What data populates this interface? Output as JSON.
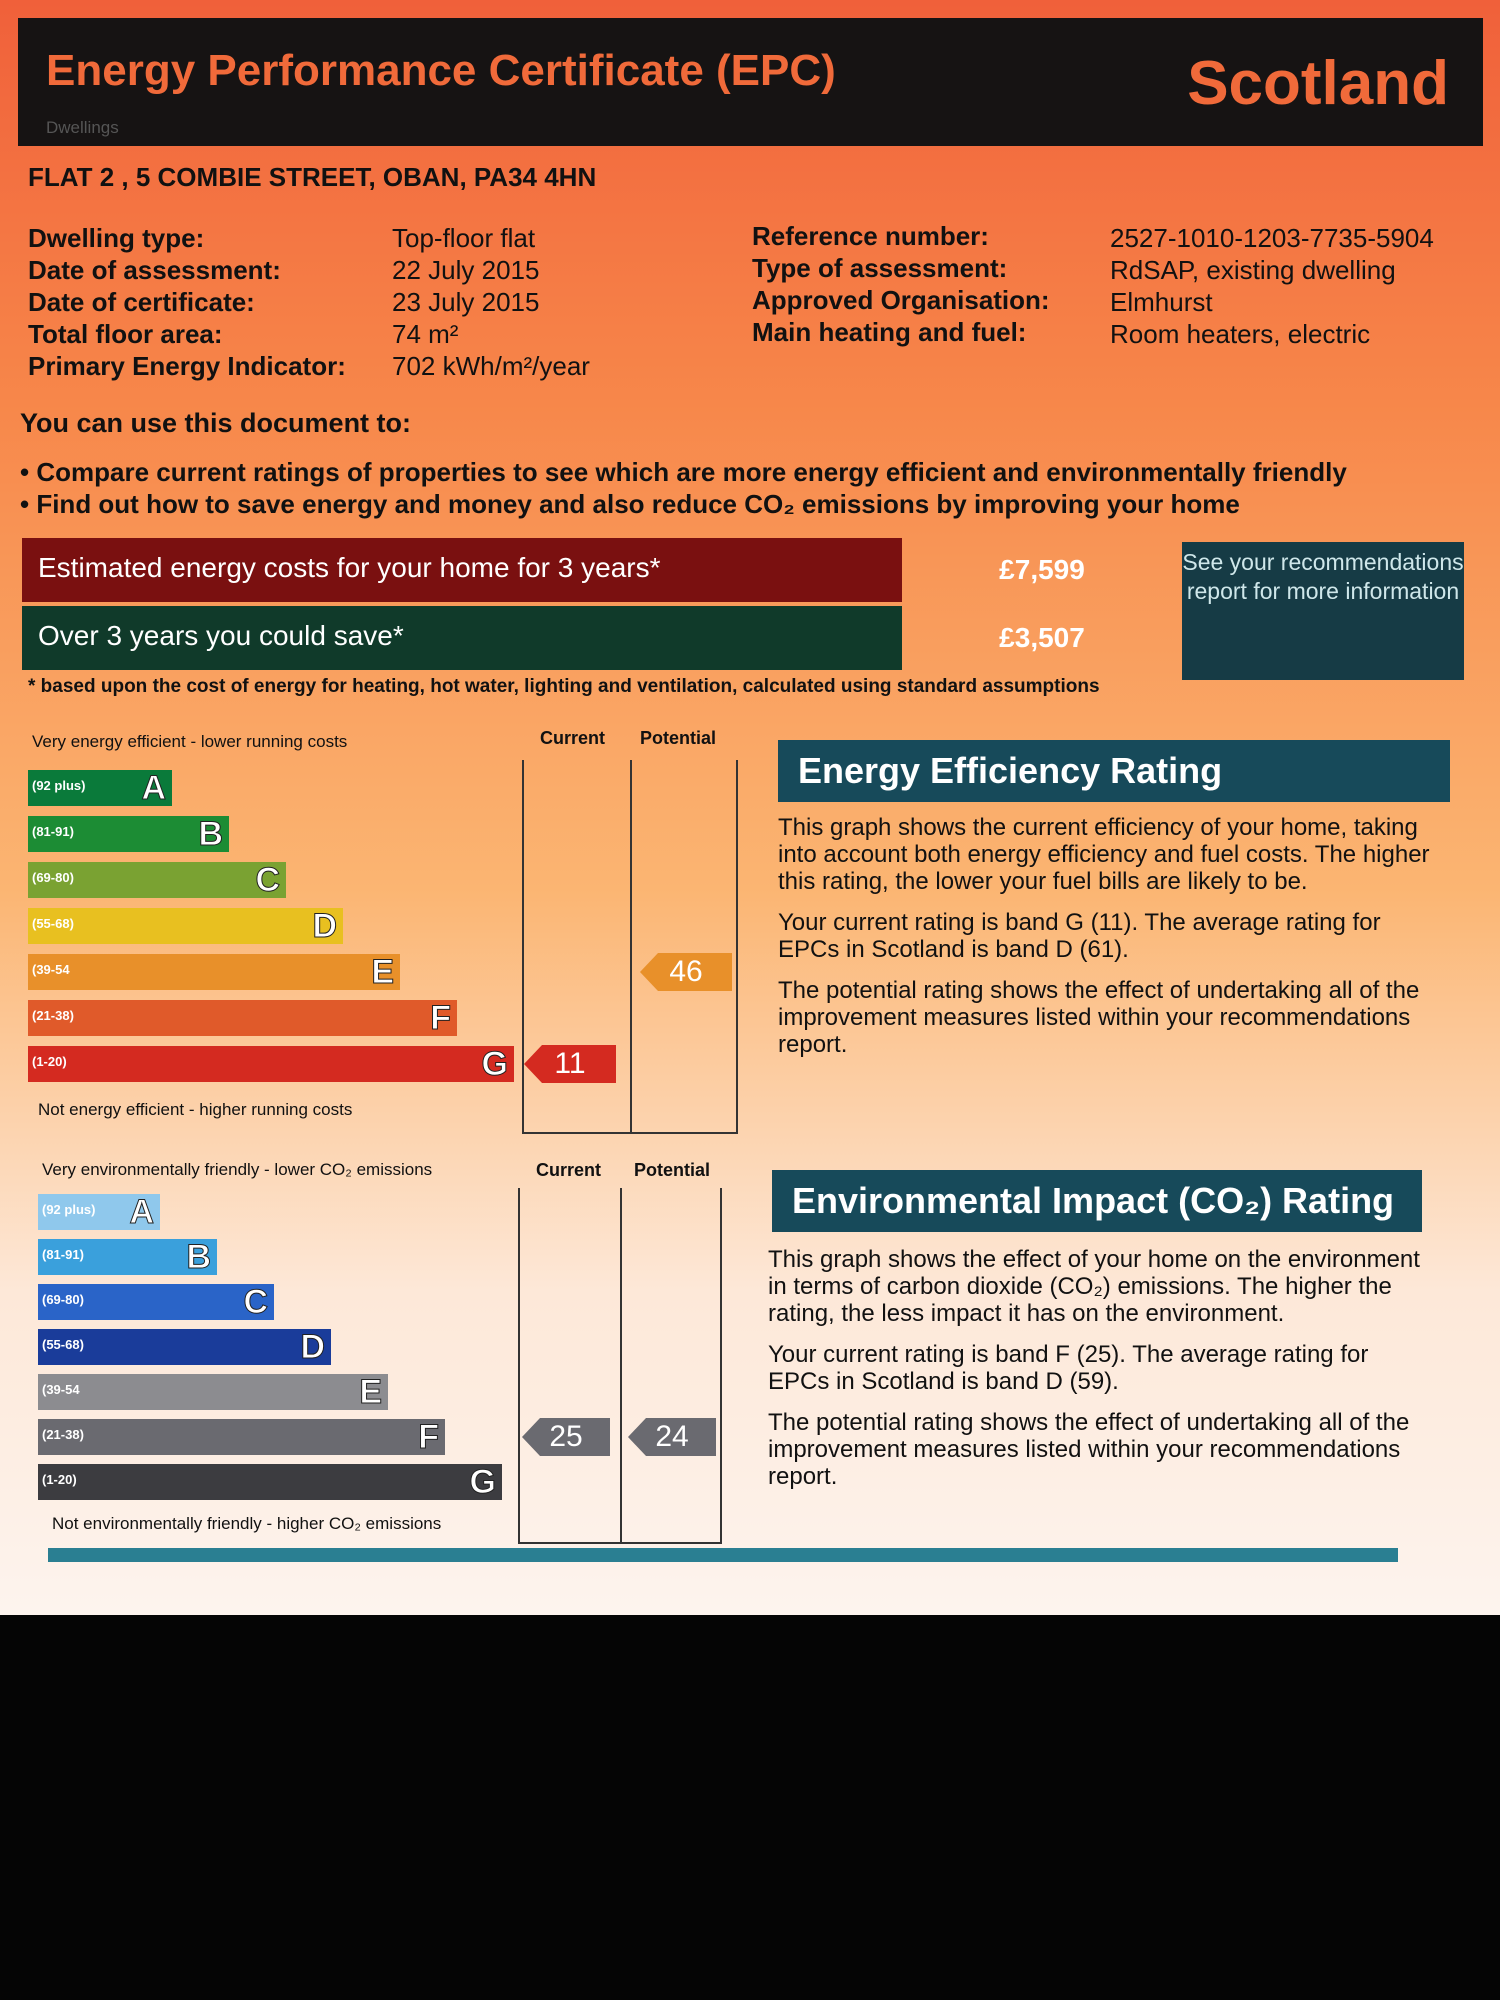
{
  "header": {
    "title": "Energy Performance Certificate (EPC)",
    "country": "Scotland",
    "subtitle": "Dwellings"
  },
  "address": "FLAT 2 , 5 COMBIE STREET, OBAN, PA34 4HN",
  "details_left": [
    {
      "label": "Dwelling type:",
      "value": "Top-floor flat"
    },
    {
      "label": "Date of assessment:",
      "value": "22 July 2015"
    },
    {
      "label": "Date of certificate:",
      "value": "23 July 2015"
    },
    {
      "label": "Total floor area:",
      "value": "74 m²"
    },
    {
      "label": "Primary Energy Indicator:",
      "value": "702 kWh/m²/year"
    }
  ],
  "details_right": [
    {
      "label": "Reference number:",
      "value": "2527-1010-1203-7735-5904"
    },
    {
      "label": "Type of assessment:",
      "value": "RdSAP, existing dwelling"
    },
    {
      "label": "Approved Organisation:",
      "value": "Elmhurst"
    },
    {
      "label": "Main heating and fuel:",
      "value": "Room heaters, electric"
    }
  ],
  "use_heading": "You can use this document to:",
  "bullets": [
    "Compare current ratings of properties to see which are more energy efficient and environmentally friendly",
    "Find out how to save energy and money and also reduce CO₂ emissions by improving your home"
  ],
  "costs": {
    "row1_label": "Estimated energy costs for your home for 3 years*",
    "row1_value": "£7,599",
    "row2_label": "Over 3 years you could save*",
    "row2_value": "£3,507",
    "see_box": "See your recommendations report for more information",
    "footnote": "* based upon the cost of energy for heating, hot water, lighting and ventilation, calculated using standard assumptions"
  },
  "colors": {
    "cost_row1": "#7a1010",
    "cost_row2": "#103a2a",
    "ee_bands": [
      "#0a7a3a",
      "#1c8c34",
      "#7aa232",
      "#e8c020",
      "#e8902a",
      "#e05a2a",
      "#d42a20"
    ],
    "ei_bands": [
      "#8fc8ec",
      "#3aa0dc",
      "#2a64c8",
      "#1a3c9a",
      "#8c8c90",
      "#6a6a70",
      "#3c3c40"
    ]
  },
  "energy_chart": {
    "top_label": "Very energy efficient - lower running costs",
    "bottom_label": "Not energy efficient - higher running costs",
    "col_current": "Current",
    "col_potential": "Potential",
    "bands": [
      {
        "letter": "A",
        "range": "(92 plus)"
      },
      {
        "letter": "B",
        "range": "(81-91)"
      },
      {
        "letter": "C",
        "range": "(69-80)"
      },
      {
        "letter": "D",
        "range": "(55-68)"
      },
      {
        "letter": "E",
        "range": "(39-54"
      },
      {
        "letter": "F",
        "range": "(21-38)"
      },
      {
        "letter": "G",
        "range": "(1-20)"
      }
    ],
    "current": "11",
    "potential": "46"
  },
  "environment_chart": {
    "top_label": "Very environmentally friendly - lower CO₂ emissions",
    "bottom_label": "Not environmentally friendly - higher CO₂ emissions",
    "col_current": "Current",
    "col_potential": "Potential",
    "bands": [
      {
        "letter": "A",
        "range": "(92 plus)"
      },
      {
        "letter": "B",
        "range": "(81-91)"
      },
      {
        "letter": "C",
        "range": "(69-80)"
      },
      {
        "letter": "D",
        "range": "(55-68)"
      },
      {
        "letter": "E",
        "range": "(39-54"
      },
      {
        "letter": "F",
        "range": "(21-38)"
      },
      {
        "letter": "G",
        "range": "(1-20)"
      }
    ],
    "current": "25",
    "potential": "24"
  },
  "energy_rating": {
    "heading": "Energy Efficiency Rating",
    "p1": "This graph shows the current efficiency of your home, taking into account both energy efficiency and fuel costs. The higher this rating, the lower your fuel bills are likely to be.",
    "p2": "Your current rating is band G (11). The average rating for EPCs in Scotland is band D (61).",
    "p3": "The potential rating shows the effect of undertaking all of the improvement measures listed within your recommendations report."
  },
  "environment_rating": {
    "heading": "Environmental Impact (CO₂) Rating",
    "p1": "This graph shows the effect of your home on the environment in terms of carbon dioxide (CO₂) emissions. The higher the rating, the less impact it has on the environment.",
    "p2": "Your current rating is band F (25). The average rating for EPCs in Scotland is band D (59).",
    "p3": "The potential rating shows the effect of undertaking all of the improvement measures listed within your recommendations report."
  }
}
